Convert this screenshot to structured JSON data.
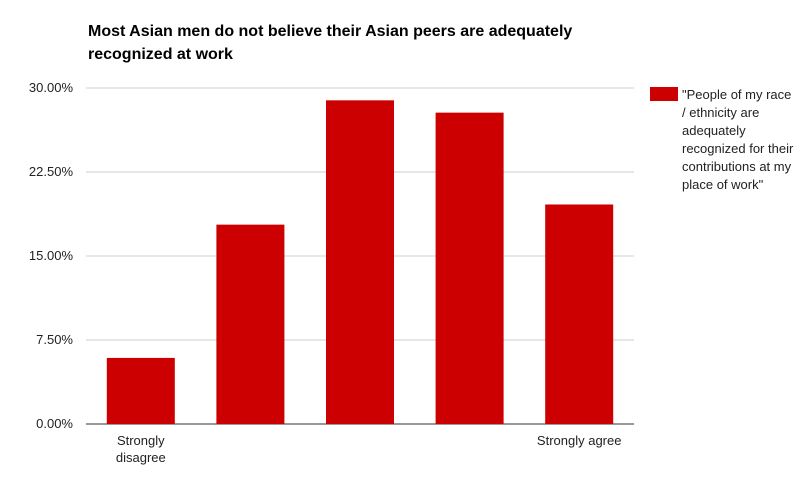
{
  "chart_data": {
    "type": "bar",
    "title": "Most Asian men do not believe their Asian peers are adequately recognized at work",
    "categories": [
      "Strongly disagree",
      null,
      null,
      null,
      "Strongly agree"
    ],
    "series": [
      {
        "name": "\"People of my race / ethnicity are adequately recognized for their contributions at my place of work\"",
        "color": "#cc0000",
        "values": [
          5.9,
          17.8,
          28.9,
          27.8,
          19.6
        ]
      }
    ],
    "ylim": [
      0,
      30
    ],
    "yticks": [
      {
        "value": 0,
        "label": "0.00%"
      },
      {
        "value": 7.5,
        "label": "7.50%"
      },
      {
        "value": 15,
        "label": "15.00%"
      },
      {
        "value": 22.5,
        "label": "22.50%"
      },
      {
        "value": 30,
        "label": "30.00%"
      }
    ],
    "grid": true,
    "legend": "right"
  }
}
